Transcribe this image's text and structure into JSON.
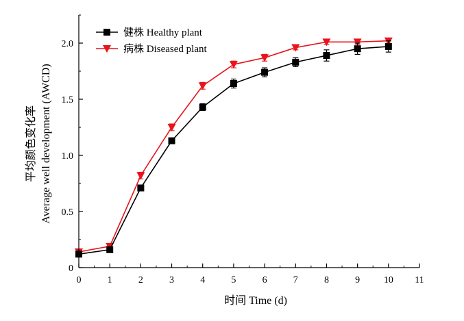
{
  "chart_data": {
    "type": "line",
    "xlabel": "时间 Time (d)",
    "ylabel_cn": "平均颜色变化率",
    "ylabel_en": "Average well development (AWCD)",
    "xlim": [
      0,
      11
    ],
    "ylim": [
      0,
      2.25
    ],
    "xticks": [
      0,
      1,
      2,
      3,
      4,
      5,
      6,
      7,
      8,
      9,
      10,
      11
    ],
    "yticks": [
      0,
      0.5,
      1.0,
      1.5,
      2.0
    ],
    "ytick_labels": [
      "0",
      "0.5",
      "1.0",
      "1.5",
      "2.0"
    ],
    "legend_position": "top-left",
    "grid": false,
    "series": [
      {
        "name": "健株 Healthy plant",
        "color": "#000000",
        "marker": "square",
        "x": [
          0,
          1,
          2,
          3,
          4,
          5,
          6,
          7,
          8,
          9,
          10
        ],
        "y": [
          0.12,
          0.16,
          0.71,
          1.13,
          1.43,
          1.64,
          1.74,
          1.83,
          1.89,
          1.95,
          1.97
        ],
        "err": [
          0.01,
          0.01,
          0.02,
          0.02,
          0.03,
          0.04,
          0.04,
          0.04,
          0.05,
          0.05,
          0.05
        ]
      },
      {
        "name": "病株 Diseased plant",
        "color": "#e8141c",
        "marker": "triangle-down",
        "x": [
          0,
          1,
          2,
          3,
          4,
          5,
          6,
          7,
          8,
          9,
          10
        ],
        "y": [
          0.14,
          0.19,
          0.82,
          1.25,
          1.62,
          1.81,
          1.87,
          1.96,
          2.01,
          2.01,
          2.02
        ],
        "err": [
          0.01,
          0.01,
          0.03,
          0.03,
          0.03,
          0.03,
          0.03,
          0.02,
          0.02,
          0.02,
          0.02
        ]
      }
    ]
  }
}
